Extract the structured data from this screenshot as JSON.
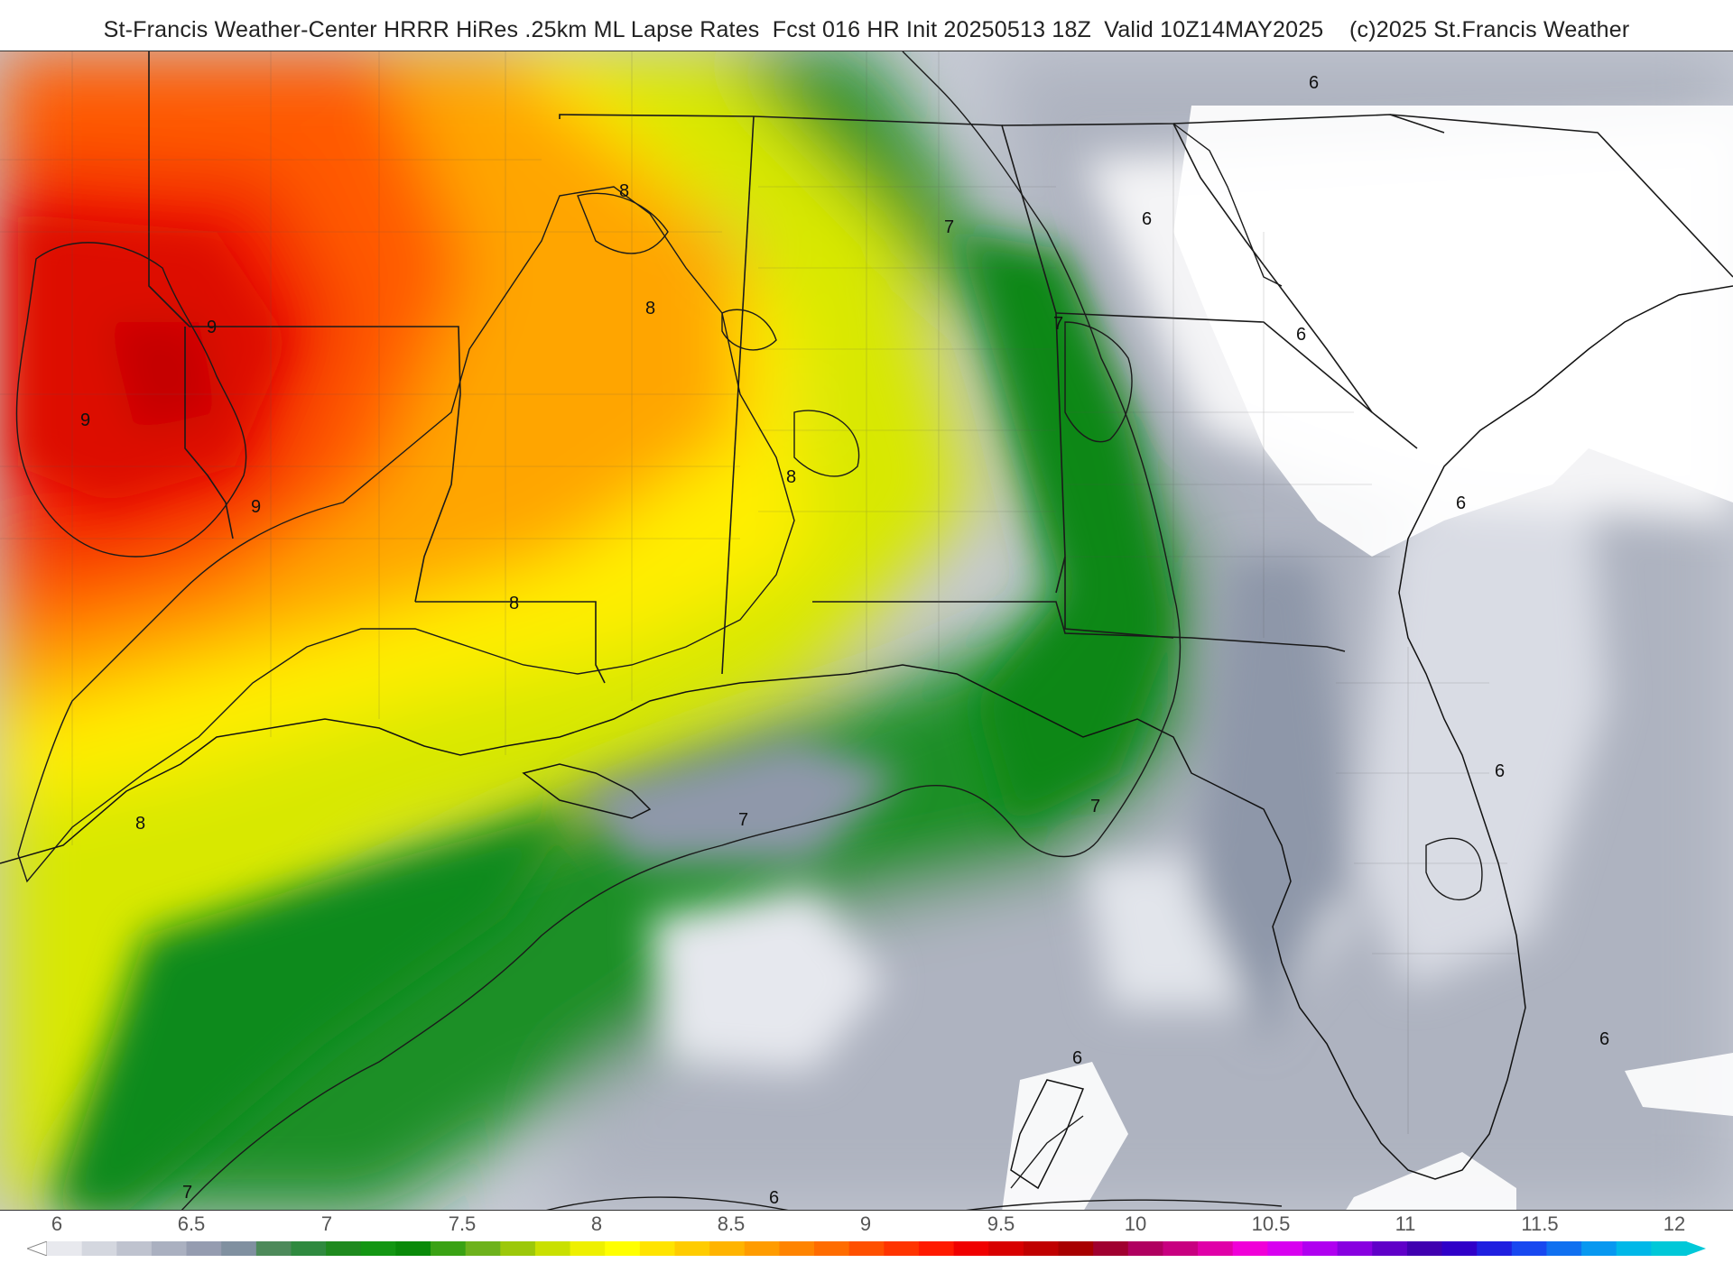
{
  "header": {
    "title": "St-Francis Weather-Center HRRR HiRes .25km ML Lapse Rates  Fcst 016 HR Init 20250513 18Z  Valid 10Z14MAY2025    (c)2025 St.Francis Weather"
  },
  "map": {
    "region": "Southeastern United States and Gulf of Mexico",
    "field": "Mixed-layer lapse rates",
    "contour_labels": [
      "6",
      "6",
      "6",
      "6",
      "6",
      "6",
      "6",
      "6",
      "7",
      "7",
      "7",
      "7",
      "7",
      "8",
      "8",
      "8",
      "8",
      "8",
      "9",
      "9",
      "9"
    ]
  },
  "colorbar": {
    "tick_labels": [
      "6",
      "6.5",
      "7",
      "7.5",
      "8",
      "8.5",
      "9",
      "9.5",
      "10",
      "10.5",
      "11",
      "11.5",
      "12"
    ],
    "colors": [
      "#e8e9ee",
      "#d4d7df",
      "#bfc3cf",
      "#aab0c0",
      "#959cb0",
      "#8090a0",
      "#4d8a5a",
      "#2f8a3f",
      "#1e8a1e",
      "#139613",
      "#0a8a0a",
      "#3aa214",
      "#6db21c",
      "#9cc80a",
      "#c9e000",
      "#eef000",
      "#ffff00",
      "#ffe400",
      "#ffcc00",
      "#ffb400",
      "#ff9c00",
      "#ff8400",
      "#ff6c00",
      "#ff5000",
      "#ff3400",
      "#ff1a00",
      "#f00000",
      "#d80000",
      "#c00000",
      "#a80000",
      "#a00030",
      "#b00060",
      "#c80080",
      "#e000a8",
      "#f000d8",
      "#d800f0",
      "#b000f0",
      "#8800e0",
      "#6000c8",
      "#4000b0",
      "#3000c8",
      "#2020e0",
      "#1848f0",
      "#1070f0",
      "#0898f0",
      "#00b8e8",
      "#00c8d8"
    ]
  }
}
